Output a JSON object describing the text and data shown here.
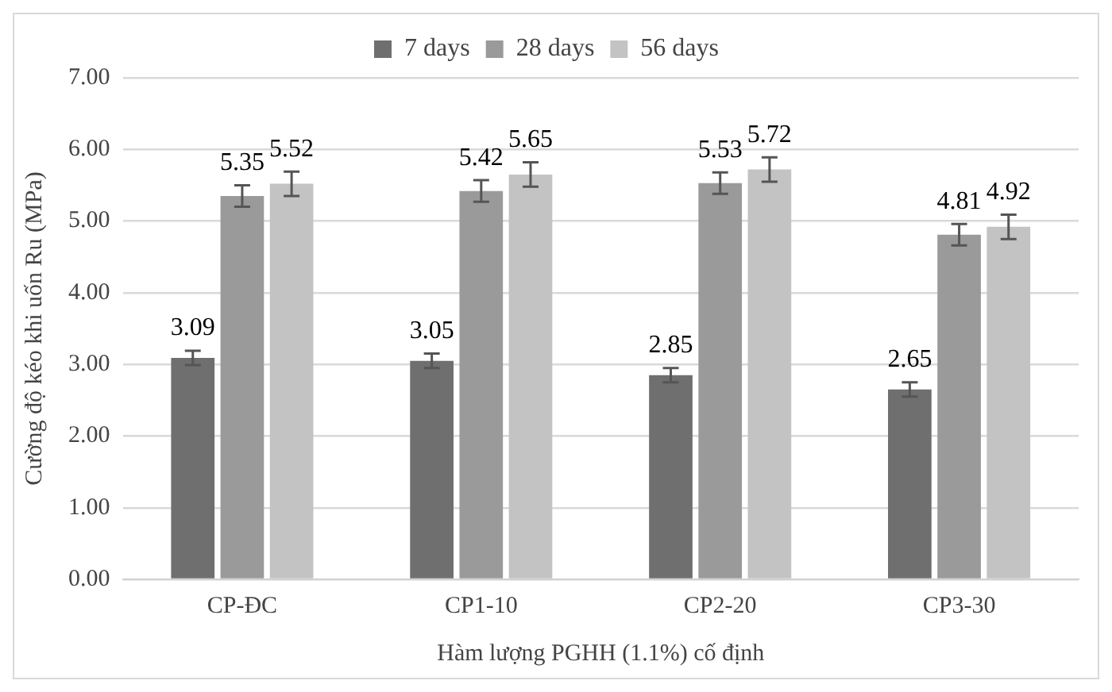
{
  "chart_data": {
    "type": "bar",
    "xlabel": "Hàm lượng PGHH (1.1%) cố định",
    "ylabel": "Cường độ kéo khi uốn Ru (MPa)",
    "categories": [
      "CP-ĐC",
      "CP1-10",
      "CP2-20",
      "CP3-30"
    ],
    "series": [
      {
        "name": "7 days",
        "color": "#6f6f6f",
        "values": [
          3.09,
          3.05,
          2.85,
          2.65
        ],
        "errors": [
          0.1,
          0.1,
          0.1,
          0.1
        ]
      },
      {
        "name": "28 days",
        "color": "#9a9a9a",
        "values": [
          5.35,
          5.42,
          5.53,
          4.81
        ],
        "errors": [
          0.15,
          0.15,
          0.15,
          0.15
        ]
      },
      {
        "name": "56 days",
        "color": "#c3c3c3",
        "values": [
          5.52,
          5.65,
          5.72,
          4.92
        ],
        "errors": [
          0.17,
          0.17,
          0.17,
          0.17
        ]
      }
    ],
    "ylim": [
      0,
      7
    ],
    "yticks": [
      {
        "value": 0,
        "label": "0.00"
      },
      {
        "value": 1,
        "label": "1.00"
      },
      {
        "value": 2,
        "label": "2.00"
      },
      {
        "value": 3,
        "label": "3.00"
      },
      {
        "value": 4,
        "label": "4.00"
      },
      {
        "value": 5,
        "label": "5.00"
      },
      {
        "value": 6,
        "label": "6.00"
      },
      {
        "value": 7,
        "label": "7.00"
      }
    ],
    "grid": "y",
    "legend": "top",
    "data_labels": true
  }
}
